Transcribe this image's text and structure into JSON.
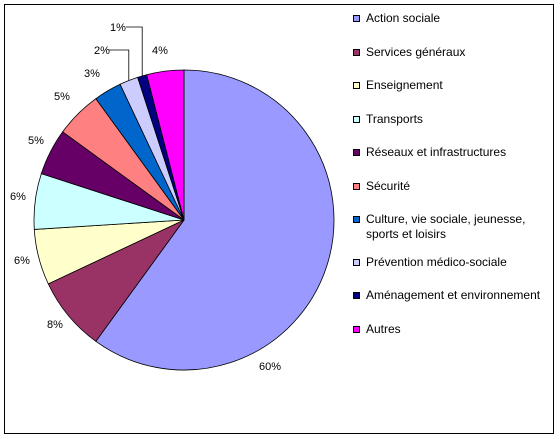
{
  "chart_data": {
    "type": "pie",
    "title": "",
    "categories": [
      "Action sociale",
      "Services généraux",
      "Enseignement",
      "Transports",
      "Réseaux et infrastructures",
      "Sécurité",
      "Culture, vie sociale, jeunesse,\nsports et loisirs",
      "Prévention médico-sociale",
      "Aménagement et environnement",
      "Autres"
    ],
    "values": [
      60,
      8,
      6,
      6,
      5,
      5,
      3,
      2,
      1,
      4
    ],
    "labels": [
      "60%",
      "8%",
      "6%",
      "6%",
      "5%",
      "5%",
      "3%",
      "2%",
      "1%",
      "4%"
    ],
    "colors": [
      "#9999ff",
      "#993366",
      "#ffffcc",
      "#ccffff",
      "#660066",
      "#ff8080",
      "#0066cc",
      "#ccccff",
      "#000080",
      "#ff00ff"
    ],
    "legend_position": "right",
    "start_direction": "top",
    "direction": "clockwise"
  }
}
